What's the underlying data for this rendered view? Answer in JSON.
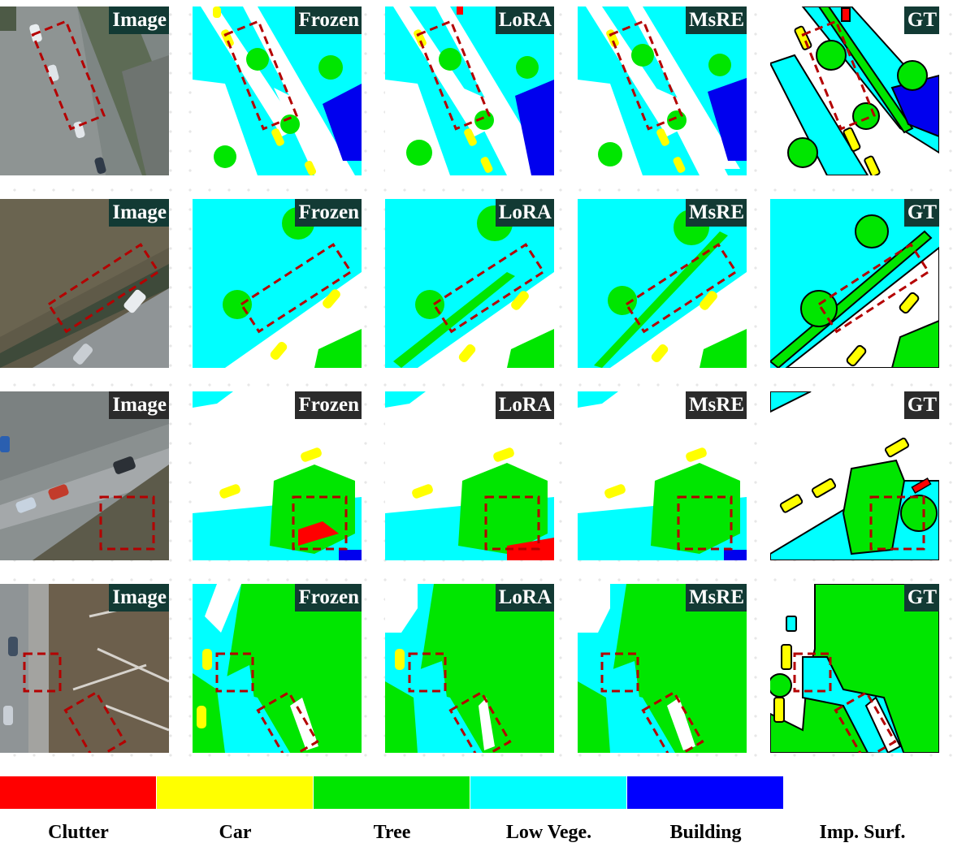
{
  "columns": [
    "Image",
    "Frozen",
    "LoRA",
    "MsRE",
    "GT"
  ],
  "legend": [
    {
      "label": "Clutter",
      "color": "#ff0000"
    },
    {
      "label": "Car",
      "color": "#ffff00"
    },
    {
      "label": "Tree",
      "color": "#00e600"
    },
    {
      "label": "Low Vege.",
      "color": "#00ffff"
    },
    {
      "label": "Building",
      "color": "#0000ff"
    },
    {
      "label": "Imp. Surf.",
      "color": "#ffffff"
    }
  ],
  "highlight_color": "#b40000"
}
